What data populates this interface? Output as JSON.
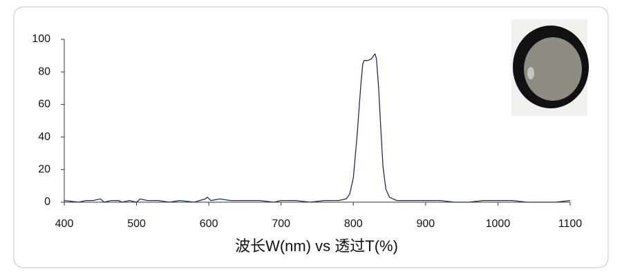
{
  "chart_data": {
    "type": "line",
    "title": "波长W(nm) vs 透过T(%)",
    "color": "#1f2a5a",
    "x": [
      400,
      410,
      420,
      430,
      440,
      450,
      455,
      465,
      475,
      480,
      490,
      500,
      505,
      515,
      530,
      545,
      560,
      580,
      595,
      598,
      603,
      615,
      630,
      650,
      670,
      690,
      700,
      720,
      740,
      760,
      780,
      790,
      795,
      800,
      805,
      810,
      813,
      815,
      820,
      825,
      828,
      830,
      832,
      835,
      838,
      841,
      845,
      850,
      860,
      880,
      900,
      920,
      940,
      960,
      980,
      1000,
      1020,
      1040,
      1060,
      1080,
      1100
    ],
    "values": [
      1,
      0.5,
      0,
      1,
      1,
      2,
      0,
      1,
      1,
      0,
      1,
      0,
      2,
      1,
      1,
      0,
      1,
      0,
      2,
      3,
      1,
      2,
      1,
      1,
      1,
      0,
      1,
      1,
      0,
      1,
      1,
      2,
      5,
      15,
      40,
      70,
      85,
      87,
      87,
      88,
      90,
      91,
      88,
      70,
      45,
      22,
      8,
      3,
      1,
      1,
      1,
      1,
      0,
      0,
      1,
      1,
      1,
      0,
      0,
      0,
      1
    ],
    "xlim": [
      400,
      1100
    ],
    "xticks": [
      400,
      500,
      600,
      700,
      800,
      900,
      1000,
      1100
    ],
    "ylim": [
      0,
      100
    ],
    "yticks": [
      0,
      20,
      40,
      60,
      80,
      100
    ]
  }
}
